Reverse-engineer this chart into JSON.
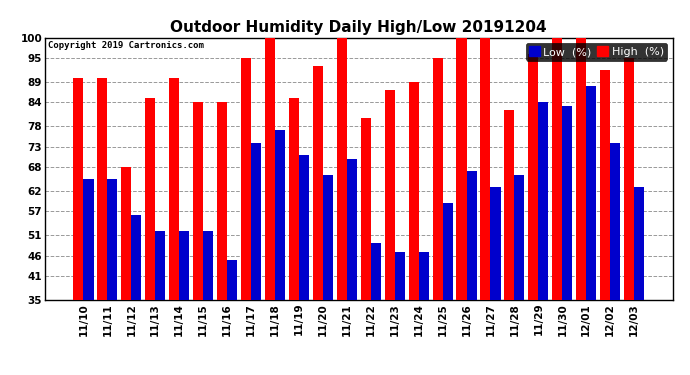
{
  "title": "Outdoor Humidity Daily High/Low 20191204",
  "copyright": "Copyright 2019 Cartronics.com",
  "categories": [
    "11/10",
    "11/11",
    "11/12",
    "11/13",
    "11/14",
    "11/15",
    "11/16",
    "11/17",
    "11/18",
    "11/19",
    "11/20",
    "11/21",
    "11/22",
    "11/23",
    "11/24",
    "11/25",
    "11/26",
    "11/27",
    "11/28",
    "11/29",
    "11/30",
    "12/01",
    "12/02",
    "12/03"
  ],
  "high": [
    90,
    90,
    68,
    85,
    90,
    84,
    84,
    95,
    100,
    85,
    93,
    100,
    80,
    87,
    89,
    95,
    100,
    100,
    82,
    96,
    100,
    100,
    92,
    95
  ],
  "low": [
    65,
    65,
    56,
    52,
    52,
    52,
    45,
    74,
    77,
    71,
    66,
    70,
    49,
    47,
    47,
    59,
    67,
    63,
    66,
    84,
    83,
    88,
    74,
    63
  ],
  "high_color": "#FF0000",
  "low_color": "#0000CC",
  "bg_color": "#FFFFFF",
  "grid_color": "#999999",
  "ylim_min": 35,
  "ylim_max": 100,
  "yticks": [
    35,
    41,
    46,
    51,
    57,
    62,
    68,
    73,
    78,
    84,
    89,
    95,
    100
  ],
  "bar_width": 0.42,
  "title_fontsize": 11,
  "tick_fontsize": 7.5,
  "legend_fontsize": 8
}
